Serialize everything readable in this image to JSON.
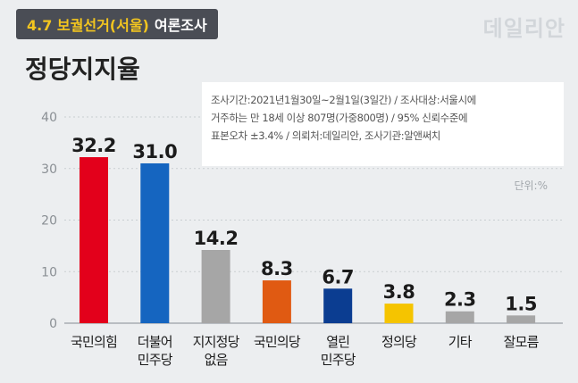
{
  "header": {
    "tag_highlight": "4.7 보궐선거(서울)",
    "tag_rest": "여론조사",
    "logo": "데일리안"
  },
  "title": "정당지지율",
  "survey_info": {
    "line1": "조사기간:2021년1월30일~2월1일(3일간) / 조사대상:서울시에",
    "line2": "거주하는 만 18세 이상 807명(가중800명) / 95% 신뢰수준에",
    "line3": "표본오차 ±3.4% / 의뢰처:데일리안, 조사기관:알앤써치"
  },
  "unit_label": "단위:%",
  "chart_data": {
    "type": "bar",
    "title": "정당지지율",
    "categories": [
      [
        "국민의힘"
      ],
      [
        "더불어",
        "민주당"
      ],
      [
        "지지정당",
        "없음"
      ],
      [
        "국민의당"
      ],
      [
        "열린",
        "민주당"
      ],
      [
        "정의당"
      ],
      [
        "기타"
      ],
      [
        "잘모름"
      ]
    ],
    "values": [
      32.2,
      31.0,
      14.2,
      8.3,
      6.7,
      3.8,
      2.3,
      1.5
    ],
    "value_labels": [
      "32.2",
      "31.0",
      "14.2",
      "8.3",
      "6.7",
      "3.8",
      "2.3",
      "1.5"
    ],
    "colors": [
      "#e3001b",
      "#1565c0",
      "#a6a6a6",
      "#e05a12",
      "#0b3d91",
      "#f5c400",
      "#a6a6a6",
      "#a6a6a6"
    ],
    "yticks": [
      0,
      10,
      20,
      30,
      40
    ],
    "ylim": [
      0,
      40
    ],
    "grid": true
  }
}
